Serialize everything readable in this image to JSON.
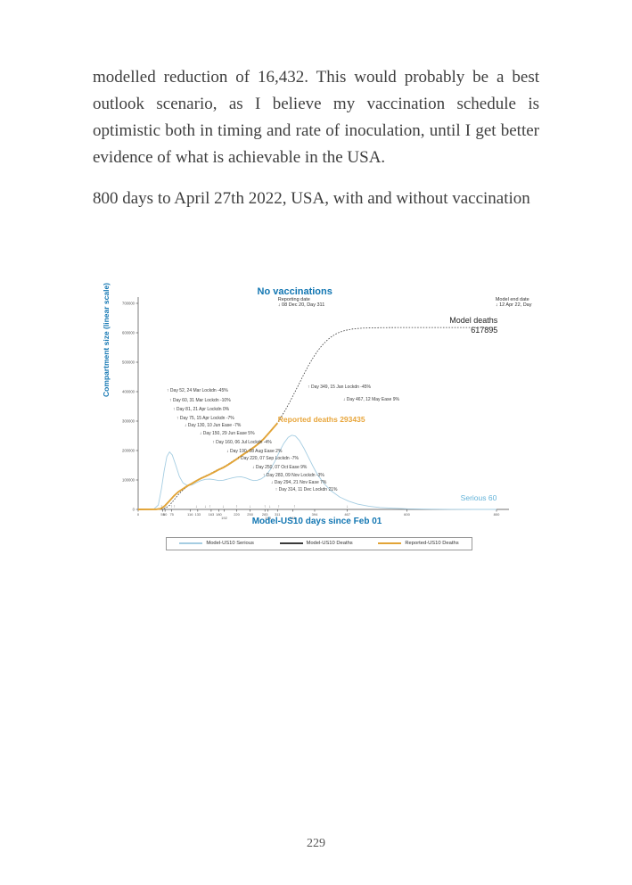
{
  "paragraphs": {
    "p1": "modelled reduction of 16,432. This would probably be a best outlook scenario, as I believe my vaccination schedule is optimistic both in timing and rate of inoculation, until I get better evidence of what is achievable in the USA.",
    "p2": "800 days to April 27th 2022, USA, with and without vaccination"
  },
  "page": {
    "number": "229"
  },
  "colors": {
    "chart_blue": "#1276b2",
    "serious_line": "#a5cde2",
    "serious_text": "#62b2d8",
    "deaths_line": "#3a3a3a",
    "reported_line": "#e2a437",
    "reported_text": "#e8a63c"
  },
  "chart_data": {
    "type": "line",
    "title": "No vaccinations",
    "xlabel": "Model-US10 days since Feb 01",
    "ylabel": "Compartment size (linear scale)",
    "xlim": [
      0,
      800
    ],
    "ylim": [
      0,
      700000
    ],
    "grid": false,
    "legend_position": "below",
    "notes": {
      "reporting_date_line1": "Reporting date",
      "reporting_date_line2": "↓ 08 Dec 20, Day 311",
      "model_end_line1": "Model end date",
      "model_end_line2": "↓ 12 Apr 22, Day",
      "model_deaths_label": "Model deaths",
      "model_deaths_value": "617895",
      "reported_deaths_label": "Reported deaths 293435",
      "serious_label": "Serious 60"
    },
    "yticks": [
      {
        "value": 0,
        "label": "0"
      },
      {
        "value": 100000,
        "label": "100000"
      },
      {
        "value": 200000,
        "label": "200000"
      },
      {
        "value": 300000,
        "label": "300000"
      },
      {
        "value": 400000,
        "label": "400000"
      },
      {
        "value": 500000,
        "label": "500000"
      },
      {
        "value": 600000,
        "label": "600000"
      },
      {
        "value": 700000,
        "label": "700000"
      }
    ],
    "xticks": [
      {
        "day": 0,
        "label": "0",
        "row": 1
      },
      {
        "day": 55,
        "label": "55",
        "row": 1
      },
      {
        "day": 60,
        "label": "60",
        "row": 1
      },
      {
        "day": 75,
        "label": "75",
        "row": 1
      },
      {
        "day": 116,
        "label": "116",
        "row": 1
      },
      {
        "day": 133,
        "label": "133",
        "row": 1
      },
      {
        "day": 163,
        "label": "163",
        "row": 1
      },
      {
        "day": 180,
        "label": "180",
        "row": 1
      },
      {
        "day": 192,
        "label": "192",
        "row": 2
      },
      {
        "day": 220,
        "label": "220",
        "row": 1
      },
      {
        "day": 250,
        "label": "250",
        "row": 1
      },
      {
        "day": 283,
        "label": "283",
        "row": 1
      },
      {
        "day": 290,
        "label": "290",
        "row": 2
      },
      {
        "day": 311,
        "label": "311",
        "row": 1
      },
      {
        "day": 345,
        "label": "345",
        "row": 2
      },
      {
        "day": 394,
        "label": "394",
        "row": 1
      },
      {
        "day": 467,
        "label": "467",
        "row": 1
      },
      {
        "day": 600,
        "label": "600",
        "row": 1
      },
      {
        "day": 800,
        "label": "800",
        "row": 1
      }
    ],
    "annotations": [
      {
        "text": "↑ Day 52, 24 Mar Lockdn -45%",
        "day": 52,
        "dir": "up",
        "left": 15.1,
        "top": 38.6
      },
      {
        "text": "↑ Day 60, 31 Mar Lockdn -10%",
        "day": 60,
        "dir": "up",
        "left": 15.7,
        "top": 42.5
      },
      {
        "text": "↑ Day 81, 21 Apr Lockdn 0%",
        "day": 81,
        "dir": "up",
        "left": 16.5,
        "top": 45.9
      },
      {
        "text": "↑ Day 75, 15 Apr Lockdn -7%",
        "day": 75,
        "dir": "up",
        "left": 17.3,
        "top": 49.4
      },
      {
        "text": "↓ Day 130, 10 Jun Ease -7%",
        "day": 130,
        "dir": "down",
        "left": 19.1,
        "top": 52.1
      },
      {
        "text": "↓ Day 150, 29 Jun Ease 5%",
        "day": 150,
        "dir": "down",
        "left": 22.5,
        "top": 55.2
      },
      {
        "text": "↑ Day 160, 06 Jul Lockdn -4%",
        "day": 160,
        "dir": "up",
        "left": 25.4,
        "top": 58.6
      },
      {
        "text": "↓ Day 190, 08 Aug Ease 2%",
        "day": 190,
        "dir": "down",
        "left": 28.6,
        "top": 62.0
      },
      {
        "text": "↑ Day 220, 07 Sep Lockdn -7%",
        "day": 220,
        "dir": "up",
        "left": 31.0,
        "top": 64.8
      },
      {
        "text": "↓ Day 250, 07 Oct Ease 9%",
        "day": 250,
        "dir": "down",
        "left": 34.4,
        "top": 68.2
      },
      {
        "text": "↑ Day 283, 09 Nov Lockdn -3%",
        "day": 283,
        "dir": "up",
        "left": 36.8,
        "top": 71.3
      },
      {
        "text": "↓ Day 294, 21 Nov Ease 7%",
        "day": 294,
        "dir": "down",
        "left": 38.6,
        "top": 74.0
      },
      {
        "text": "↑ Day 314, 11 Dec Lockdn 21%",
        "day": 314,
        "dir": "up",
        "left": 39.6,
        "top": 76.8
      },
      {
        "text": "↑ Day 349, 15 Jan Lockdn -45%",
        "day": 349,
        "dir": "up",
        "left": 46.9,
        "top": 37.4
      },
      {
        "text": "↓ Day 467, 12 May Ease 9%",
        "day": 467,
        "dir": "down",
        "left": 54.9,
        "top": 42.2
      }
    ],
    "legend": [
      {
        "label": "Model-US10 Serious",
        "color": "#a5cde2"
      },
      {
        "label": "Model-US10 Deaths",
        "color": "#3a3a3a"
      },
      {
        "label": "Reported-US10 Deaths",
        "color": "#e2a437"
      }
    ],
    "series": [
      {
        "name": "Model-US10 Serious",
        "color": "#a5cde2",
        "width": 0.9,
        "dash": null,
        "points": [
          [
            0,
            0
          ],
          [
            35,
            1000
          ],
          [
            45,
            15000
          ],
          [
            52,
            70000
          ],
          [
            58,
            130000
          ],
          [
            64,
            180000
          ],
          [
            70,
            195000
          ],
          [
            76,
            185000
          ],
          [
            84,
            150000
          ],
          [
            92,
            112000
          ],
          [
            100,
            90000
          ],
          [
            110,
            81000
          ],
          [
            120,
            83000
          ],
          [
            130,
            91000
          ],
          [
            140,
            98000
          ],
          [
            150,
            102000
          ],
          [
            160,
            103000
          ],
          [
            170,
            101000
          ],
          [
            180,
            98000
          ],
          [
            190,
            99000
          ],
          [
            200,
            103000
          ],
          [
            210,
            107000
          ],
          [
            220,
            110000
          ],
          [
            230,
            111000
          ],
          [
            240,
            107000
          ],
          [
            250,
            101000
          ],
          [
            258,
            98000
          ],
          [
            266,
            99000
          ],
          [
            275,
            104000
          ],
          [
            285,
            115000
          ],
          [
            295,
            135000
          ],
          [
            305,
            163000
          ],
          [
            315,
            195000
          ],
          [
            325,
            224000
          ],
          [
            335,
            245000
          ],
          [
            343,
            252000
          ],
          [
            351,
            249000
          ],
          [
            360,
            234000
          ],
          [
            370,
            208000
          ],
          [
            380,
            178000
          ],
          [
            390,
            147000
          ],
          [
            400,
            119000
          ],
          [
            415,
            88000
          ],
          [
            430,
            64000
          ],
          [
            450,
            42000
          ],
          [
            470,
            28000
          ],
          [
            490,
            18000
          ],
          [
            515,
            11000
          ],
          [
            540,
            6500
          ],
          [
            570,
            3800
          ],
          [
            600,
            2200
          ],
          [
            650,
            900
          ],
          [
            700,
            350
          ],
          [
            750,
            130
          ],
          [
            800,
            60
          ]
        ]
      },
      {
        "name": "Model-US10 Deaths",
        "color": "#3a3a3a",
        "width": 0.8,
        "dash": "1.6,1.6",
        "points": [
          [
            0,
            0
          ],
          [
            50,
            500
          ],
          [
            60,
            4000
          ],
          [
            70,
            14000
          ],
          [
            80,
            32000
          ],
          [
            90,
            51000
          ],
          [
            100,
            66000
          ],
          [
            110,
            78000
          ],
          [
            120,
            89000
          ],
          [
            130,
            98000
          ],
          [
            140,
            107000
          ],
          [
            150,
            114000
          ],
          [
            160,
            121000
          ],
          [
            170,
            129000
          ],
          [
            180,
            137000
          ],
          [
            190,
            144000
          ],
          [
            200,
            153000
          ],
          [
            210,
            163000
          ],
          [
            220,
            173000
          ],
          [
            230,
            184000
          ],
          [
            240,
            194000
          ],
          [
            250,
            204000
          ],
          [
            260,
            215000
          ],
          [
            270,
            227000
          ],
          [
            280,
            241000
          ],
          [
            290,
            258000
          ],
          [
            300,
            276000
          ],
          [
            311,
            295000
          ],
          [
            320,
            316000
          ],
          [
            330,
            341000
          ],
          [
            340,
            369000
          ],
          [
            350,
            399000
          ],
          [
            360,
            429000
          ],
          [
            370,
            459000
          ],
          [
            380,
            488000
          ],
          [
            390,
            514000
          ],
          [
            400,
            537000
          ],
          [
            410,
            556000
          ],
          [
            420,
            572000
          ],
          [
            430,
            585000
          ],
          [
            440,
            595000
          ],
          [
            450,
            602000
          ],
          [
            460,
            607000
          ],
          [
            470,
            610500
          ],
          [
            480,
            613000
          ],
          [
            490,
            614600
          ],
          [
            500,
            615700
          ],
          [
            520,
            616800
          ],
          [
            540,
            617300
          ],
          [
            560,
            617600
          ],
          [
            600,
            617820
          ],
          [
            700,
            617890
          ],
          [
            800,
            617895
          ]
        ]
      },
      {
        "name": "Reported-US10 Deaths",
        "color": "#e2a437",
        "width": 1.9,
        "dash": null,
        "points": [
          [
            0,
            0
          ],
          [
            40,
            300
          ],
          [
            50,
            2500
          ],
          [
            55,
            7000
          ],
          [
            60,
            13000
          ],
          [
            70,
            29000
          ],
          [
            80,
            46000
          ],
          [
            90,
            60000
          ],
          [
            100,
            70000
          ],
          [
            110,
            80000
          ],
          [
            120,
            88000
          ],
          [
            130,
            97000
          ],
          [
            140,
            105000
          ],
          [
            150,
            112000
          ],
          [
            160,
            119000
          ],
          [
            170,
            127000
          ],
          [
            180,
            135000
          ],
          [
            190,
            142000
          ],
          [
            200,
            151000
          ],
          [
            210,
            161000
          ],
          [
            220,
            171000
          ],
          [
            230,
            182000
          ],
          [
            240,
            192000
          ],
          [
            250,
            202000
          ],
          [
            260,
            213000
          ],
          [
            270,
            225000
          ],
          [
            280,
            239000
          ],
          [
            290,
            256000
          ],
          [
            300,
            274000
          ],
          [
            311,
            293435
          ]
        ]
      }
    ]
  }
}
